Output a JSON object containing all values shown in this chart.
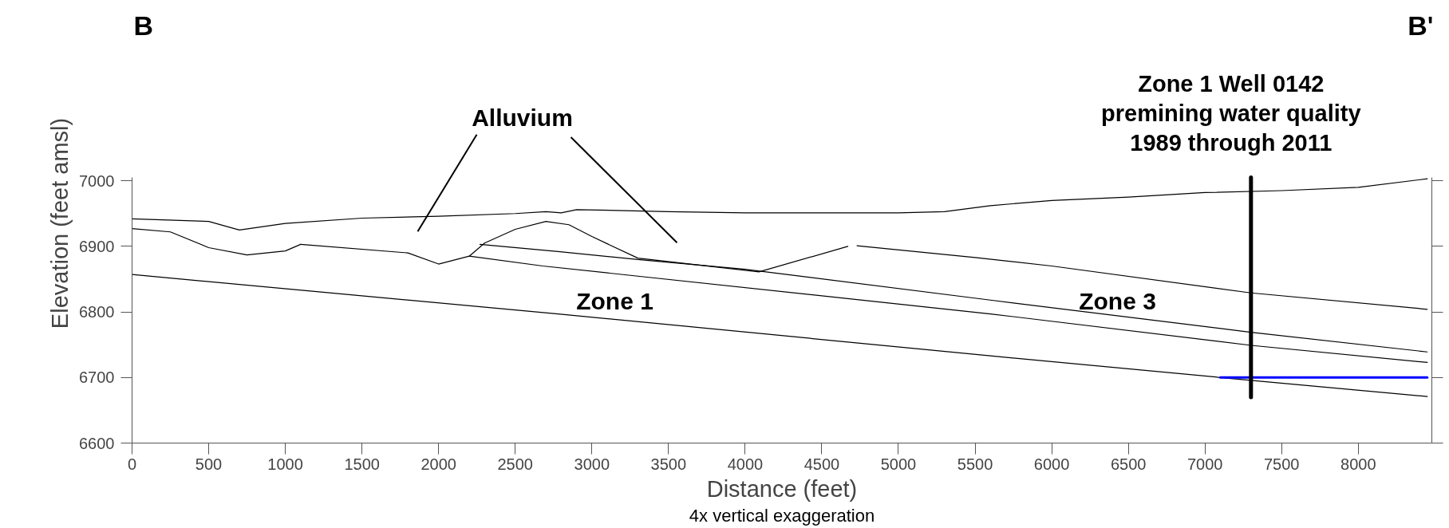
{
  "chart_data": {
    "type": "line",
    "xlabel": "Distance (feet)",
    "ylabel": "Elevation (feet amsl)",
    "xlim": [
      0,
      8480
    ],
    "ylim": [
      6600,
      7005
    ],
    "xticks": [
      0,
      500,
      1000,
      1500,
      2000,
      2500,
      3000,
      3500,
      4000,
      4500,
      5000,
      5500,
      6000,
      6500,
      7000,
      7500,
      8000
    ],
    "yticks": [
      6600,
      6700,
      6800,
      6900,
      7000
    ],
    "grid": false,
    "legend": false,
    "marker": "none",
    "line_style": "solid",
    "series": [
      {
        "color": "#000000",
        "x": [
          0,
          500,
          700,
          1000,
          1500,
          2000,
          2500,
          2700,
          2800,
          2900,
          3500,
          4000,
          5000,
          5300,
          5600,
          6000,
          6500,
          7000,
          7500,
          8000,
          8450
        ],
        "values": [
          6942,
          6938,
          6925,
          6935,
          6943,
          6946,
          6950,
          6953,
          6951,
          6956,
          6953,
          6951,
          6951,
          6953,
          6962,
          6970,
          6975,
          6982,
          6985,
          6990,
          7003
        ]
      },
      {
        "color": "#000000",
        "x": [
          0,
          250,
          500,
          750,
          1000,
          1100
        ],
        "values": [
          6927,
          6922,
          6898,
          6887,
          6893,
          6903
        ]
      },
      {
        "color": "#000000",
        "x": [
          1100,
          1800,
          2000,
          2200,
          2300,
          2500,
          2700,
          2850,
          3000,
          3300,
          4090,
          4670
        ],
        "values": [
          6903,
          6890,
          6873,
          6885,
          6905,
          6926,
          6938,
          6933,
          6915,
          6882,
          6861,
          6900
        ]
      },
      {
        "color": "#000000",
        "x": [
          4730,
          5500,
          6000,
          7300,
          8450
        ],
        "values": [
          6901,
          6883,
          6870,
          6829,
          6804
        ]
      },
      {
        "color": "#000000",
        "x": [
          2270,
          2780,
          3300,
          4000,
          5600,
          7300,
          8450
        ],
        "values": [
          6903,
          6892,
          6880,
          6865,
          6818,
          6769,
          6739
        ]
      },
      {
        "color": "#000000",
        "x": [
          2200,
          2680,
          5600,
          7300,
          8450
        ],
        "values": [
          6885,
          6870,
          6797,
          6749,
          6723
        ]
      },
      {
        "color": "#000000",
        "x": [
          0,
          2780,
          5600,
          7100,
          8450
        ],
        "values": [
          6857,
          6797,
          6733,
          6700,
          6671
        ]
      },
      {
        "color": "#0000ff",
        "x": [
          7100,
          8450
        ],
        "values": [
          6700,
          6700
        ]
      },
      {
        "name": "Zone 1 Well 0142\npremining water quality\n1989 through 2011",
        "color": "#000000",
        "x": [
          7300,
          7300
        ],
        "values": [
          6670,
          7005
        ]
      }
    ],
    "annotations": [
      "B",
      "B'",
      "Alluvium",
      "Zone 1",
      "Zone 3",
      "4x vertical exaggeration"
    ]
  }
}
